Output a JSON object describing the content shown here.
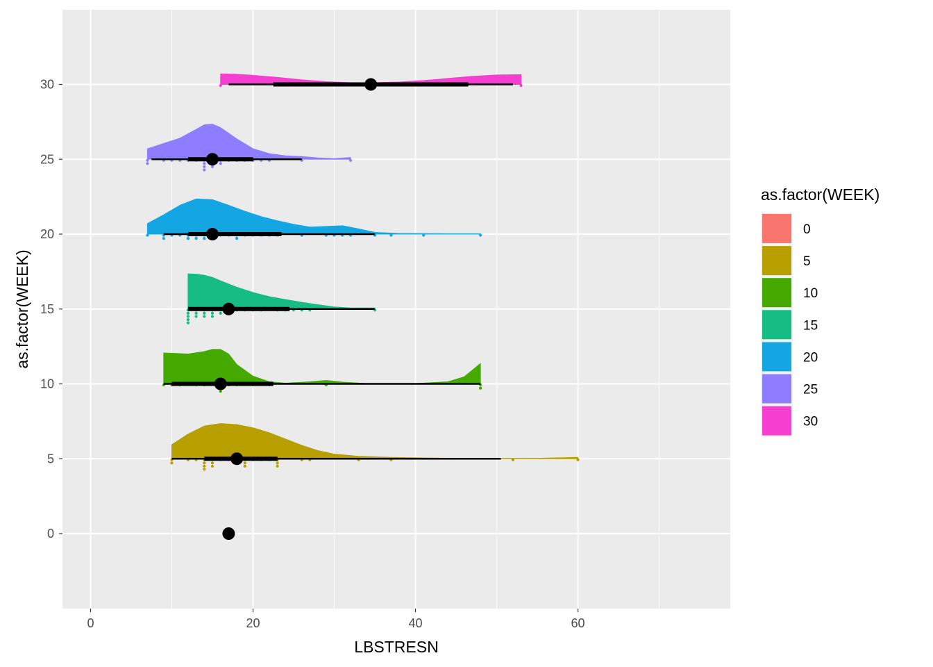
{
  "chart_data": {
    "type": "raincloud",
    "xlabel": "LBSTRESN",
    "ylabel": "as.factor(WEEK)",
    "xlim": [
      -3.6,
      79
    ],
    "ylim": [
      -4.9,
      35
    ],
    "x_ticks": [
      0,
      20,
      40,
      60
    ],
    "y_ticks": [
      0,
      5,
      10,
      15,
      20,
      25,
      30
    ],
    "legend": {
      "title": "as.factor(WEEK)",
      "position": "right",
      "entries": [
        {
          "label": "0",
          "color": "#F8766D"
        },
        {
          "label": "5",
          "color": "#B79F00"
        },
        {
          "label": "10",
          "color": "#45A900"
        },
        {
          "label": "15",
          "color": "#16BC84"
        },
        {
          "label": "20",
          "color": "#14A5E3"
        },
        {
          "label": "25",
          "color": "#8E7DFF"
        },
        {
          "label": "30",
          "color": "#F53FD0"
        }
      ]
    },
    "groups": [
      {
        "week": 0,
        "color": "#F8766D",
        "median": 17,
        "q1": 17,
        "q3": 17,
        "min": 17,
        "max": 17,
        "density": [],
        "points": []
      },
      {
        "week": 5,
        "color": "#B79F00",
        "median": 18,
        "q1": 14,
        "q3": 23,
        "min": 10,
        "max": 50.5,
        "density": [
          [
            10,
            0.4
          ],
          [
            12,
            0.7
          ],
          [
            14,
            0.93
          ],
          [
            16,
            1.0
          ],
          [
            18,
            0.97
          ],
          [
            20,
            0.88
          ],
          [
            22,
            0.74
          ],
          [
            24,
            0.56
          ],
          [
            26,
            0.38
          ],
          [
            28,
            0.23
          ],
          [
            30,
            0.13
          ],
          [
            33,
            0.07
          ],
          [
            37,
            0.04
          ],
          [
            42,
            0.02
          ],
          [
            48,
            0.01
          ],
          [
            55,
            0.012
          ],
          [
            60,
            0.04
          ]
        ],
        "points": [
          10,
          10,
          12,
          13,
          14,
          14,
          14,
          14,
          15,
          15,
          15,
          16,
          17,
          18,
          18,
          19,
          19,
          19,
          20,
          21,
          22,
          23,
          23,
          23,
          26,
          27,
          33,
          37,
          52,
          60
        ]
      },
      {
        "week": 10,
        "color": "#45A900",
        "median": 16,
        "q1": 10,
        "q3": 22.5,
        "min": 9,
        "max": 48,
        "density": [
          [
            9,
            0.88
          ],
          [
            10,
            0.87
          ],
          [
            12,
            0.85
          ],
          [
            14,
            0.92
          ],
          [
            15,
            0.98
          ],
          [
            16,
            0.98
          ],
          [
            17,
            0.85
          ],
          [
            18,
            0.55
          ],
          [
            20,
            0.22
          ],
          [
            22,
            0.06
          ],
          [
            24,
            0.02
          ],
          [
            27,
            0.06
          ],
          [
            29,
            0.1
          ],
          [
            31,
            0.05
          ],
          [
            34,
            0.01
          ],
          [
            40,
            0.01
          ],
          [
            44,
            0.06
          ],
          [
            46,
            0.2
          ],
          [
            48,
            0.58
          ]
        ],
        "points": [
          9,
          10,
          11,
          13,
          14,
          16,
          16,
          16,
          17,
          18,
          20,
          22,
          29,
          48,
          48
        ]
      },
      {
        "week": 15,
        "color": "#16BC84",
        "median": 17,
        "q1": 12,
        "q3": 24.5,
        "min": 12,
        "max": 35,
        "density": [
          [
            12,
            1.0
          ],
          [
            13,
            0.99
          ],
          [
            14,
            0.96
          ],
          [
            15,
            0.9
          ],
          [
            16,
            0.8
          ],
          [
            18,
            0.62
          ],
          [
            20,
            0.47
          ],
          [
            22,
            0.35
          ],
          [
            24,
            0.27
          ],
          [
            26,
            0.19
          ],
          [
            28,
            0.12
          ],
          [
            30,
            0.06
          ],
          [
            32,
            0.03
          ],
          [
            34,
            0.03
          ],
          [
            35,
            0.03
          ]
        ],
        "points": [
          12,
          12,
          12,
          12,
          12,
          13,
          13,
          13,
          14,
          14,
          14,
          15,
          15,
          15,
          16,
          16,
          17,
          18,
          19,
          20,
          21,
          23,
          24,
          25,
          26,
          27,
          35
        ]
      },
      {
        "week": 20,
        "color": "#14A5E3",
        "median": 15,
        "q1": 12,
        "q3": 23.5,
        "min": 9,
        "max": 35,
        "density": [
          [
            7,
            0.3
          ],
          [
            9,
            0.55
          ],
          [
            11,
            0.82
          ],
          [
            13,
            1.0
          ],
          [
            15,
            0.98
          ],
          [
            17,
            0.82
          ],
          [
            19,
            0.65
          ],
          [
            21,
            0.5
          ],
          [
            23,
            0.38
          ],
          [
            25,
            0.28
          ],
          [
            27,
            0.2
          ],
          [
            29,
            0.22
          ],
          [
            31,
            0.24
          ],
          [
            33,
            0.15
          ],
          [
            35,
            0.05
          ],
          [
            38,
            0.02
          ],
          [
            44,
            0.01
          ],
          [
            48,
            0.01
          ]
        ],
        "points": [
          7,
          9,
          9,
          10,
          11,
          12,
          12,
          13,
          13,
          14,
          14,
          15,
          15,
          16,
          17,
          18,
          18,
          19,
          20,
          21,
          22,
          23,
          26,
          29,
          30,
          31,
          32,
          35,
          37,
          41,
          48
        ]
      },
      {
        "week": 25,
        "color": "#8E7DFF",
        "median": 15,
        "q1": 12,
        "q3": 20,
        "min": 7.5,
        "max": 26,
        "density": [
          [
            7,
            0.3
          ],
          [
            9,
            0.45
          ],
          [
            11,
            0.6
          ],
          [
            13,
            0.85
          ],
          [
            14,
            0.98
          ],
          [
            15,
            1.0
          ],
          [
            16,
            0.9
          ],
          [
            18,
            0.58
          ],
          [
            20,
            0.3
          ],
          [
            22,
            0.16
          ],
          [
            24,
            0.1
          ],
          [
            26,
            0.08
          ],
          [
            28,
            0.04
          ],
          [
            30,
            0.02
          ],
          [
            32,
            0.05
          ]
        ],
        "points": [
          7,
          7,
          9,
          10,
          11,
          12,
          13,
          14,
          14,
          14,
          14,
          15,
          15,
          15,
          16,
          16,
          17,
          18,
          19,
          20,
          21,
          22,
          26,
          32
        ]
      },
      {
        "week": 30,
        "color": "#F53FD0",
        "median": 34.5,
        "q1": 22.5,
        "q3": 46.5,
        "min": 17,
        "max": 52,
        "density": [
          [
            16,
            0.3
          ],
          [
            18,
            0.29
          ],
          [
            20,
            0.26
          ],
          [
            23,
            0.2
          ],
          [
            26,
            0.13
          ],
          [
            29,
            0.08
          ],
          [
            32,
            0.05
          ],
          [
            35,
            0.05
          ],
          [
            38,
            0.07
          ],
          [
            41,
            0.11
          ],
          [
            44,
            0.17
          ],
          [
            47,
            0.23
          ],
          [
            50,
            0.27
          ],
          [
            53,
            0.28
          ]
        ],
        "points": [
          16,
          53
        ]
      }
    ]
  }
}
